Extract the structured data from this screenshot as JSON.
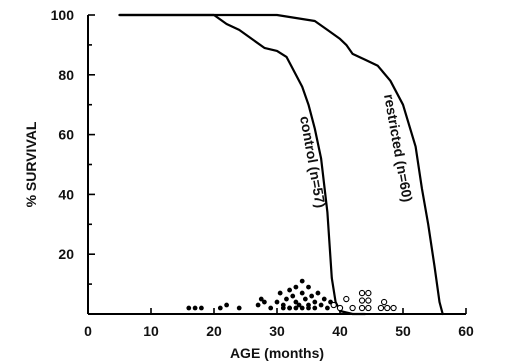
{
  "chart_data": {
    "type": "line",
    "xlabel": "AGE (months)",
    "ylabel": "% SURVIVAL",
    "xlim": [
      0,
      60
    ],
    "ylim": [
      0,
      100
    ],
    "xticks": [
      0,
      10,
      20,
      30,
      40,
      50,
      60
    ],
    "yticks": [
      20,
      40,
      60,
      80,
      100
    ],
    "xtick_labels": [
      "0",
      "10",
      "20",
      "30",
      "40",
      "50",
      "60"
    ],
    "ytick_labels": [
      "20",
      "40",
      "60",
      "80",
      "100"
    ],
    "grid": false,
    "series": [
      {
        "name": "control (n=57)",
        "label_text": "control (n=57)",
        "x": [
          5,
          20,
          22,
          24,
          26,
          28,
          30,
          31.5,
          32,
          33,
          34,
          35,
          36,
          37,
          38,
          38.7,
          39.3,
          40,
          42,
          44
        ],
        "y": [
          100,
          100,
          97,
          95,
          92,
          89,
          88,
          86,
          84,
          80,
          76,
          70,
          62,
          52,
          34,
          12,
          4,
          1,
          0,
          0
        ]
      },
      {
        "name": "restricted (n=60)",
        "label_text": "restricted (n=60)",
        "x": [
          5,
          30,
          36,
          38,
          40,
          41,
          42,
          44,
          46,
          48,
          50,
          52,
          53,
          54,
          55,
          55.8,
          56.3
        ],
        "y": [
          100,
          100,
          98,
          95,
          92,
          90,
          87,
          85,
          83,
          78,
          70,
          56,
          42,
          30,
          16,
          4,
          0
        ]
      }
    ],
    "deaths": {
      "control": {
        "marker": "filled",
        "x": [
          16,
          17,
          18,
          21,
          22,
          24,
          27,
          27.5,
          28,
          29,
          30,
          30.5,
          31,
          31.5,
          32,
          32,
          32.5,
          33,
          33,
          33.5,
          34,
          34,
          34.5,
          35,
          35,
          35.5,
          36,
          36,
          36.5,
          37,
          37.5,
          38,
          38.5,
          39,
          31,
          32,
          33,
          34,
          35
        ],
        "y": [
          2,
          2,
          2,
          2,
          3,
          2,
          3,
          5,
          4,
          2,
          4,
          7,
          3,
          5,
          8,
          2,
          6,
          4,
          9,
          3,
          7,
          11,
          5,
          3,
          9,
          6,
          2,
          4,
          7,
          3,
          5,
          2,
          4,
          3,
          2,
          2,
          2,
          2,
          2
        ]
      },
      "restricted": {
        "marker": "open",
        "x": [
          39,
          40,
          41,
          42,
          43.5,
          43.5,
          43.5,
          44.5,
          44.5,
          44.5,
          46.5,
          47.5,
          48.5,
          47
        ],
        "y": [
          3,
          2,
          5,
          2,
          2,
          4.5,
          7,
          2,
          4.5,
          7,
          2,
          2,
          2,
          4
        ]
      }
    }
  }
}
